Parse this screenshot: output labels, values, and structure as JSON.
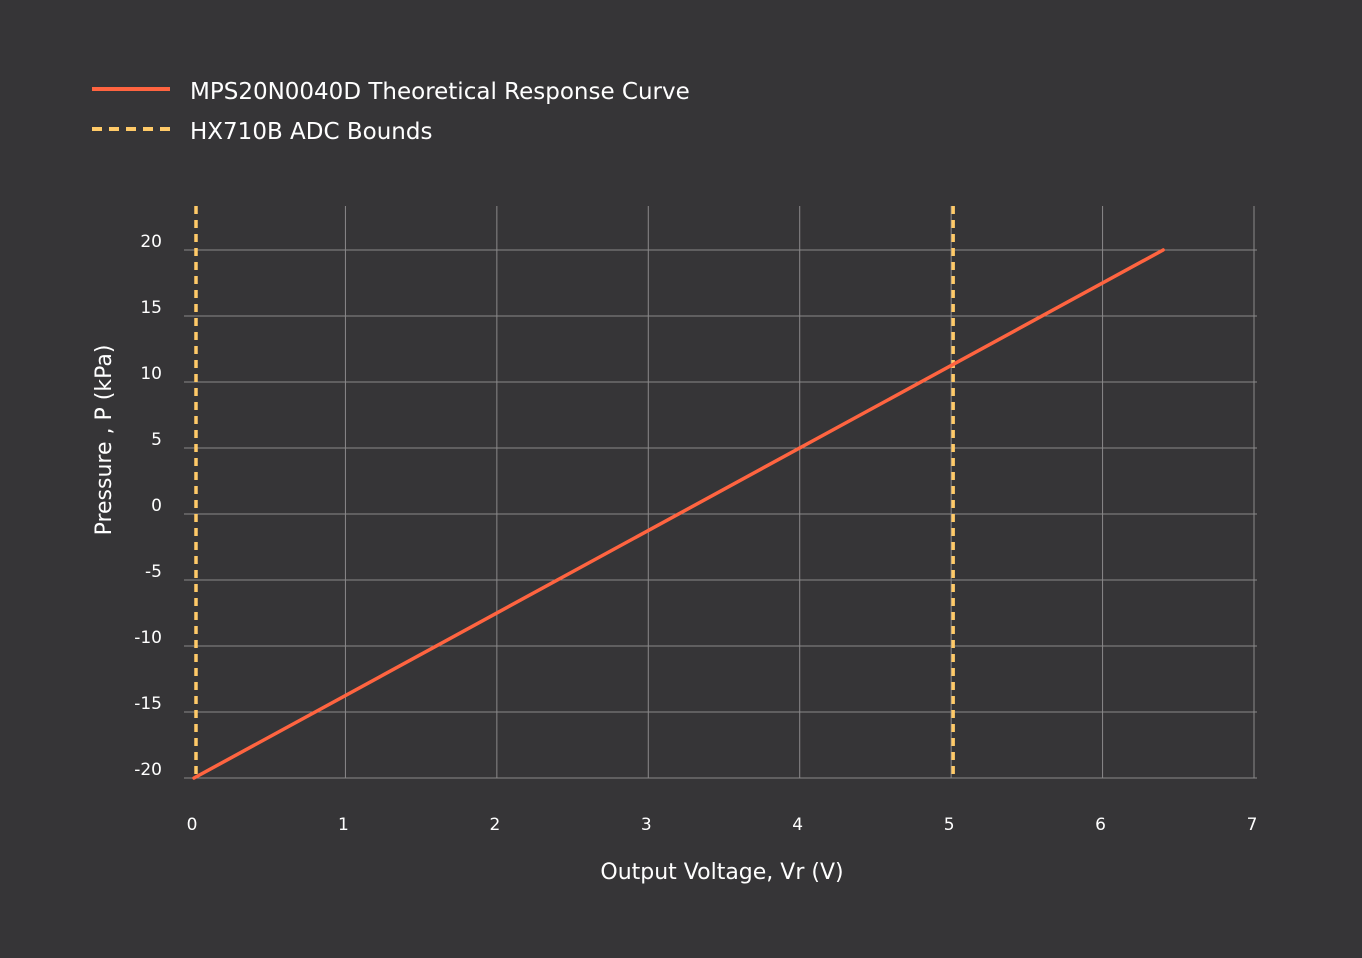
{
  "colors": {
    "background": "#363537",
    "grid": "#8a898a",
    "text": "#ffffff",
    "curve": "#ff6440",
    "bounds": "#ffca68"
  },
  "chart_data": {
    "type": "line",
    "xlabel": "Output Voltage, Vr (V)",
    "ylabel": "Pressure , P (kPa)",
    "xlim": [
      0,
      7
    ],
    "ylim": [
      -20,
      20
    ],
    "xticks": [
      0,
      1,
      2,
      3,
      4,
      5,
      6,
      7
    ],
    "yticks": [
      -20,
      -15,
      -10,
      -5,
      0,
      5,
      10,
      15,
      20
    ],
    "grid": true,
    "legend_position": "top-left",
    "series": [
      {
        "name": "MPS20N0040D Theoretical Response Curve",
        "style": "solid",
        "color": "#ff6440",
        "x": [
          0,
          6.4
        ],
        "y": [
          -20,
          20
        ]
      }
    ],
    "vertical_lines": {
      "name": "HX710B ADC Bounds",
      "style": "dashed",
      "color": "#ffca68",
      "x": [
        0,
        5
      ]
    }
  }
}
